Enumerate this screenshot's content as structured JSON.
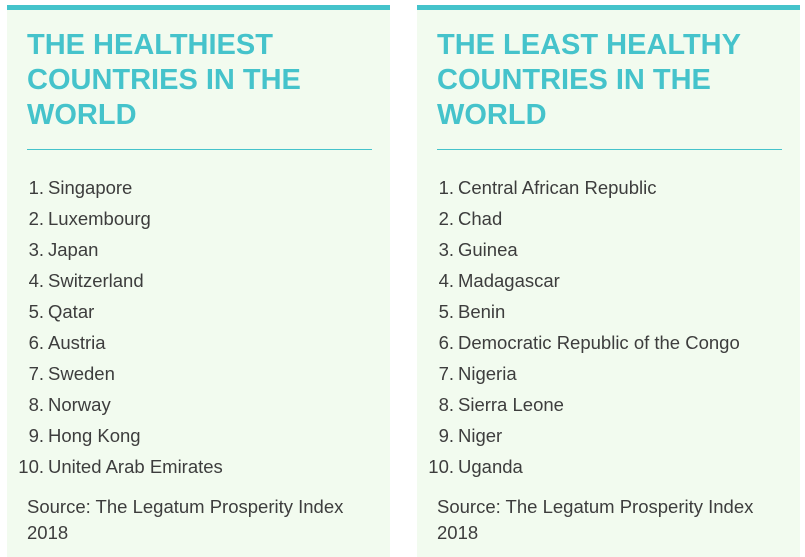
{
  "healthiest": {
    "title": "THE HEALTHIEST COUNTRIES IN THE WORLD",
    "items": [
      {
        "rank": "1.",
        "name": "Singapore"
      },
      {
        "rank": "2.",
        "name": "Luxembourg"
      },
      {
        "rank": "3.",
        "name": "Japan"
      },
      {
        "rank": "4.",
        "name": "Switzerland"
      },
      {
        "rank": "5.",
        "name": "Qatar"
      },
      {
        "rank": "6.",
        "name": "Austria"
      },
      {
        "rank": "7.",
        "name": "Sweden"
      },
      {
        "rank": "8.",
        "name": "Norway"
      },
      {
        "rank": "9.",
        "name": "Hong Kong"
      },
      {
        "rank": "10.",
        "name": "United Arab Emirates"
      }
    ],
    "source": "Source: The Legatum Prosperity Index 2018"
  },
  "least_healthy": {
    "title": "THE LEAST HEALTHY COUNTRIES IN THE WORLD",
    "items": [
      {
        "rank": "1.",
        "name": "Central African Republic"
      },
      {
        "rank": "2.",
        "name": "Chad"
      },
      {
        "rank": "3.",
        "name": "Guinea"
      },
      {
        "rank": "4.",
        "name": "Madagascar"
      },
      {
        "rank": "5.",
        "name": "Benin"
      },
      {
        "rank": "6.",
        "name": "Democratic Republic of the Congo"
      },
      {
        "rank": "7.",
        "name": "Nigeria"
      },
      {
        "rank": "8.",
        "name": "Sierra Leone"
      },
      {
        "rank": "9.",
        "name": "Niger"
      },
      {
        "rank": "10.",
        "name": "Uganda"
      }
    ],
    "source": "Source: The Legatum Prosperity Index 2018"
  },
  "colors": {
    "accent": "#45c3cb",
    "panel_background": "#f2fbef",
    "text": "#3d3d3d"
  }
}
